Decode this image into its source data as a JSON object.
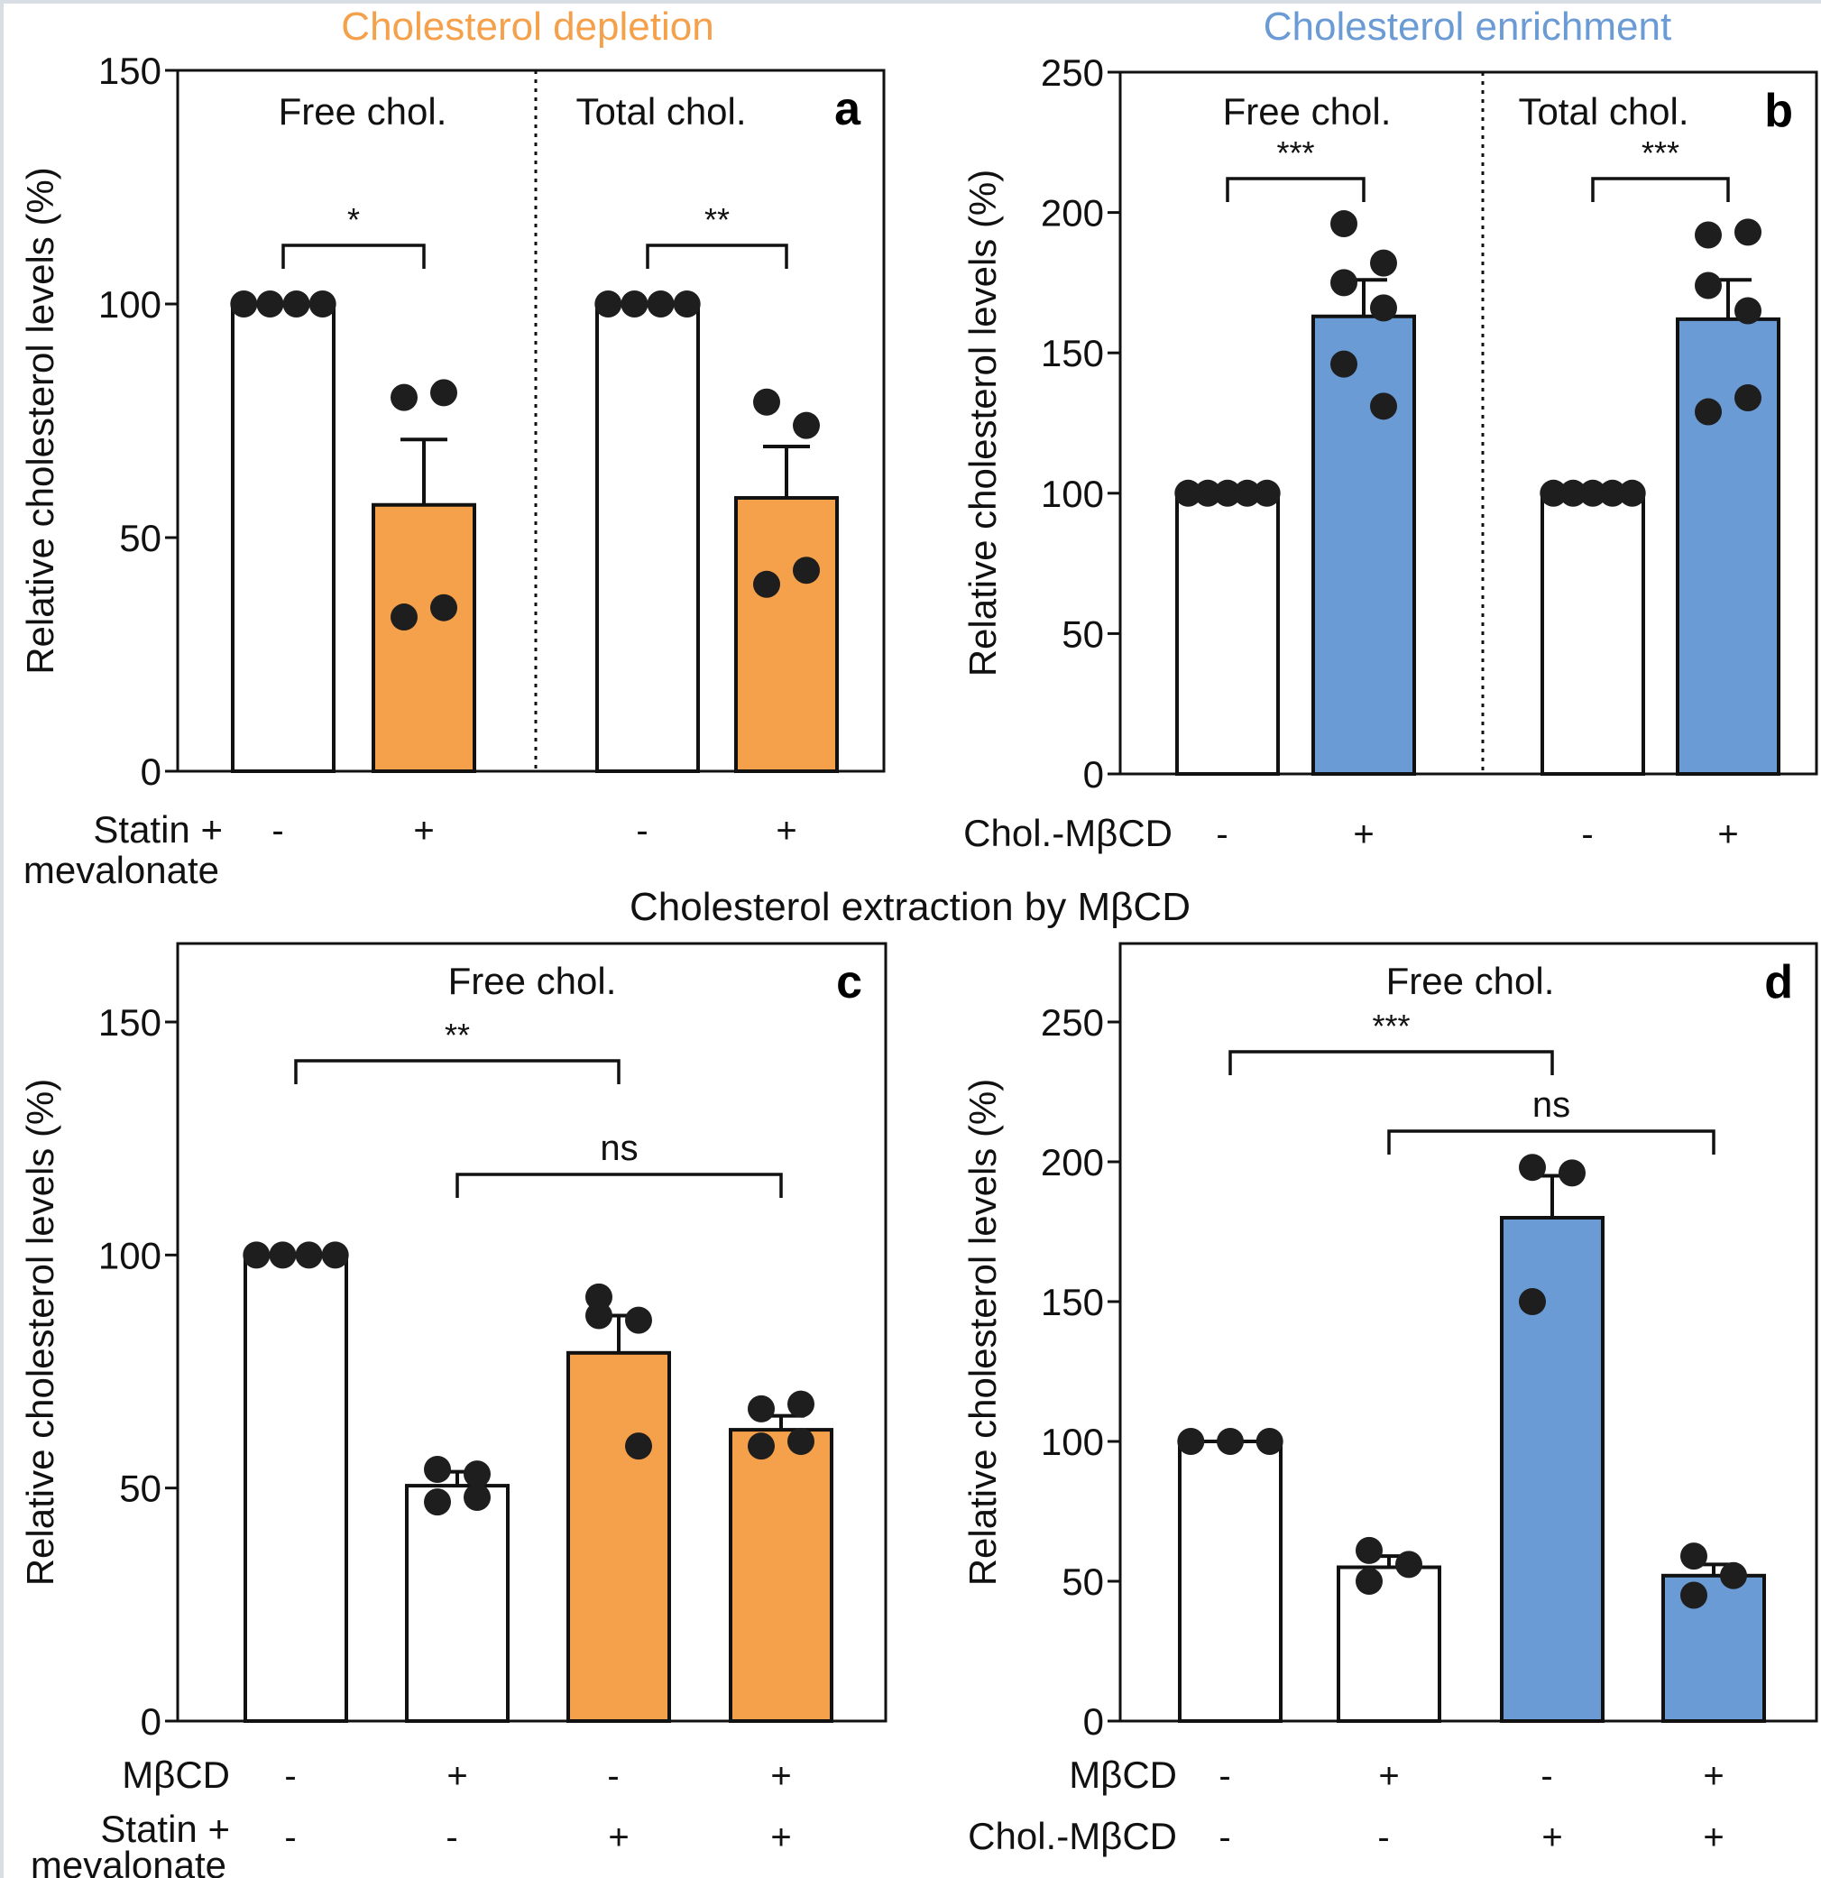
{
  "colors": {
    "depletion": "#f5a04a",
    "enrichment": "#6a9bd4",
    "open_bar": "#ffffff",
    "ink": "#111111",
    "dot": "#1e1e1e"
  },
  "headers": {
    "depletion": "Cholesterol depletion",
    "enrichment": "Cholesterol enrichment",
    "extraction": "Cholesterol extraction by MβCD"
  },
  "chart_data": [
    {
      "id": "a",
      "type": "bar",
      "letter": "a",
      "ylabel": "Relative cholesterol levels (%)",
      "ylim": [
        0,
        150
      ],
      "yticks": [
        0,
        50,
        100,
        150
      ],
      "grid": false,
      "sections": [
        "Free chol.",
        "Total chol."
      ],
      "condition_labels": [
        "Statin +\nmevalonate"
      ],
      "bars": [
        {
          "section": 0,
          "value": 100,
          "error": 0,
          "fill": "open",
          "points": [
            100,
            100,
            100,
            100
          ],
          "conditions": [
            "-"
          ]
        },
        {
          "section": 0,
          "value": 57,
          "error": 14,
          "fill": "depletion",
          "points": [
            80,
            81,
            33,
            35
          ],
          "conditions": [
            "+"
          ]
        },
        {
          "section": 1,
          "value": 100,
          "error": 0,
          "fill": "open",
          "points": [
            100,
            100,
            100,
            100
          ],
          "conditions": [
            "-"
          ]
        },
        {
          "section": 1,
          "value": 58.5,
          "error": 11,
          "fill": "depletion",
          "points": [
            79,
            74,
            40,
            43
          ],
          "conditions": [
            "+"
          ]
        }
      ],
      "brackets": [
        {
          "from": 0,
          "to": 1,
          "label": "*"
        },
        {
          "from": 2,
          "to": 3,
          "label": "**"
        }
      ]
    },
    {
      "id": "b",
      "type": "bar",
      "letter": "b",
      "ylabel": "Relative cholesterol levels (%)",
      "ylim": [
        0,
        250
      ],
      "yticks": [
        0,
        50,
        100,
        150,
        200,
        250
      ],
      "grid": false,
      "sections": [
        "Free chol.",
        "Total chol."
      ],
      "condition_labels": [
        "Chol.-MβCD"
      ],
      "bars": [
        {
          "section": 0,
          "value": 100,
          "error": 0,
          "fill": "open",
          "points": [
            100,
            100,
            100,
            100,
            100
          ],
          "conditions": [
            "-"
          ]
        },
        {
          "section": 0,
          "value": 163,
          "error": 13,
          "fill": "enrichment",
          "points": [
            196,
            182,
            175,
            166,
            146,
            131
          ],
          "conditions": [
            "+"
          ]
        },
        {
          "section": 1,
          "value": 100,
          "error": 0,
          "fill": "open",
          "points": [
            100,
            100,
            100,
            100,
            100
          ],
          "conditions": [
            "-"
          ]
        },
        {
          "section": 1,
          "value": 162,
          "error": 14,
          "fill": "enrichment",
          "points": [
            192,
            193,
            174,
            165,
            129,
            134
          ],
          "conditions": [
            "+"
          ]
        }
      ],
      "brackets": [
        {
          "from": 0,
          "to": 1,
          "label": "***"
        },
        {
          "from": 2,
          "to": 3,
          "label": "***"
        }
      ]
    },
    {
      "id": "c",
      "type": "bar",
      "letter": "c",
      "ylabel": "Relative cholesterol levels (%)",
      "ylim": [
        0,
        150
      ],
      "yticks": [
        0,
        50,
        100,
        150
      ],
      "grid": false,
      "sections": [
        "Free chol."
      ],
      "condition_labels": [
        "MβCD",
        "Statin +\nmevalonate"
      ],
      "bars": [
        {
          "section": 0,
          "value": 100,
          "error": 0,
          "fill": "open",
          "points": [
            100,
            100,
            100,
            100
          ],
          "conditions": [
            "-",
            "-"
          ]
        },
        {
          "section": 0,
          "value": 50.5,
          "error": 3,
          "fill": "open",
          "points": [
            54,
            53,
            47,
            48
          ],
          "conditions": [
            "+",
            "-"
          ]
        },
        {
          "section": 0,
          "value": 79,
          "error": 8,
          "fill": "depletion",
          "points": [
            91,
            86,
            87,
            59
          ],
          "conditions": [
            "-",
            "+"
          ]
        },
        {
          "section": 0,
          "value": 62.5,
          "error": 3,
          "fill": "depletion",
          "points": [
            67,
            68,
            59,
            60
          ],
          "conditions": [
            "+",
            "+"
          ]
        }
      ],
      "brackets": [
        {
          "from": 0,
          "to": 2,
          "label": "**"
        },
        {
          "from": 1,
          "to": 3,
          "label": "ns"
        }
      ]
    },
    {
      "id": "d",
      "type": "bar",
      "letter": "d",
      "ylabel": "Relative cholesterol levels (%)",
      "ylim": [
        0,
        250
      ],
      "yticks": [
        0,
        50,
        100,
        150,
        200,
        250
      ],
      "grid": false,
      "sections": [
        "Free chol."
      ],
      "condition_labels": [
        "MβCD",
        "Chol.-MβCD"
      ],
      "bars": [
        {
          "section": 0,
          "value": 100,
          "error": 0,
          "fill": "open",
          "points": [
            100,
            100,
            100
          ],
          "conditions": [
            "-",
            "-"
          ]
        },
        {
          "section": 0,
          "value": 55,
          "error": 4,
          "fill": "open",
          "points": [
            61,
            56,
            50
          ],
          "conditions": [
            "+",
            "-"
          ]
        },
        {
          "section": 0,
          "value": 180,
          "error": 15,
          "fill": "enrichment",
          "points": [
            198,
            196,
            150
          ],
          "conditions": [
            "-",
            "+"
          ]
        },
        {
          "section": 0,
          "value": 52,
          "error": 4,
          "fill": "enrichment",
          "points": [
            59,
            52,
            45
          ],
          "conditions": [
            "+",
            "+"
          ]
        }
      ],
      "brackets": [
        {
          "from": 0,
          "to": 2,
          "label": "***"
        },
        {
          "from": 1,
          "to": 3,
          "label": "ns"
        }
      ]
    }
  ]
}
